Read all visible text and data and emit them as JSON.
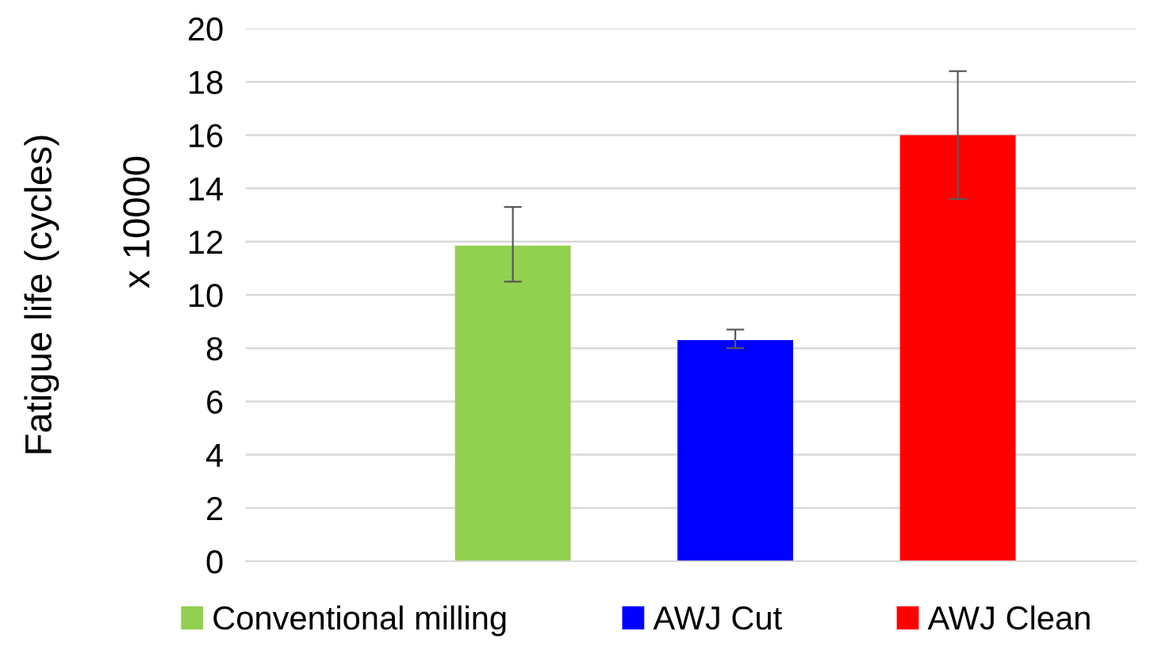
{
  "chart_data": {
    "type": "bar",
    "ylabel": "Fatigue life (cycles)",
    "annotations": [
      "x 10000"
    ],
    "categories": [
      null,
      null,
      null
    ],
    "series": [
      {
        "name": "Conventional milling",
        "color": "#92d050",
        "values": [
          11.85,
          null,
          null
        ],
        "errors": [
          [
            10.5,
            13.3
          ],
          null,
          null
        ]
      },
      {
        "name": "AWJ Cut",
        "color": "#0000ff",
        "values": [
          null,
          8.3,
          null
        ],
        "errors": [
          null,
          [
            8.0,
            8.7
          ],
          null
        ]
      },
      {
        "name": "AWJ Clean",
        "color": "#ff0000",
        "values": [
          null,
          null,
          16.0
        ],
        "errors": [
          null,
          null,
          [
            13.6,
            18.4
          ]
        ]
      }
    ],
    "ylim": [
      0,
      20
    ],
    "yticks": [
      0,
      2,
      4,
      6,
      8,
      10,
      12,
      14,
      16,
      18,
      20
    ],
    "grid": "y",
    "legend": "bottom"
  }
}
